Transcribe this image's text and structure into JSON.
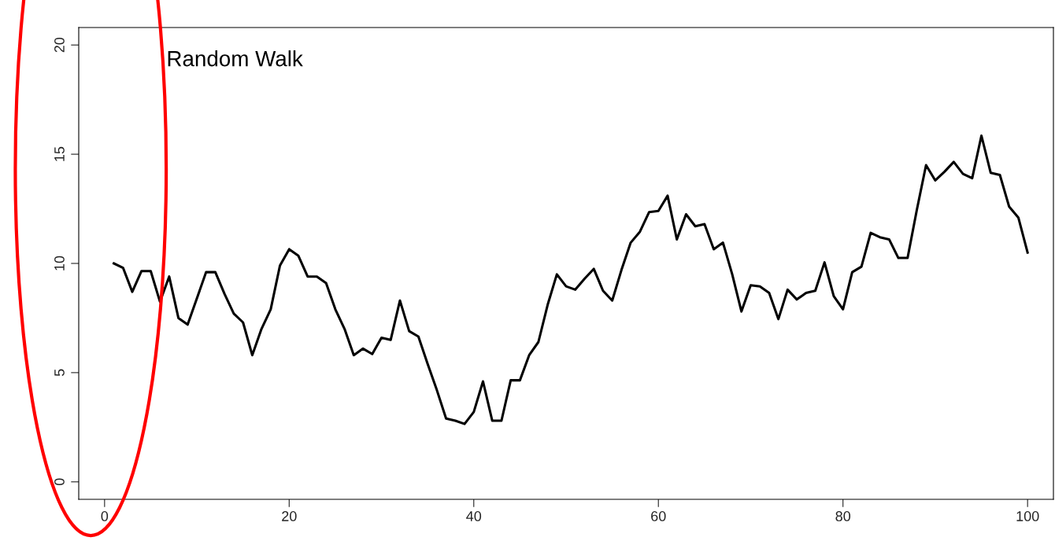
{
  "chart_data": {
    "type": "line",
    "title": "Random Walk",
    "x": [
      1,
      2,
      3,
      4,
      5,
      6,
      7,
      8,
      9,
      10,
      11,
      12,
      13,
      14,
      15,
      16,
      17,
      18,
      19,
      20,
      21,
      22,
      23,
      24,
      25,
      26,
      27,
      28,
      29,
      30,
      31,
      32,
      33,
      34,
      35,
      36,
      37,
      38,
      39,
      40,
      41,
      42,
      43,
      44,
      45,
      46,
      47,
      48,
      49,
      50,
      51,
      52,
      53,
      54,
      55,
      56,
      57,
      58,
      59,
      60,
      61,
      62,
      63,
      64,
      65,
      66,
      67,
      68,
      69,
      70,
      71,
      72,
      73,
      74,
      75,
      76,
      77,
      78,
      79,
      80,
      81,
      82,
      83,
      84,
      85,
      86,
      87,
      88,
      89,
      90,
      91,
      92,
      93,
      94,
      95,
      96,
      97,
      98,
      99,
      100
    ],
    "series": [
      {
        "color": "#000000",
        "values": [
          10.0,
          9.8,
          8.7,
          9.65,
          9.65,
          8.25,
          9.4,
          7.5,
          7.2,
          8.4,
          9.6,
          9.6,
          8.6,
          7.7,
          7.3,
          5.8,
          7.0,
          7.9,
          9.9,
          10.65,
          10.35,
          9.4,
          9.4,
          9.1,
          7.9,
          7.0,
          5.8,
          6.1,
          5.85,
          6.6,
          6.5,
          8.3,
          6.9,
          6.65,
          5.4,
          4.2,
          2.9,
          2.8,
          2.65,
          3.2,
          4.6,
          2.8,
          2.8,
          4.65,
          4.65,
          5.8,
          6.4,
          8.1,
          9.5,
          8.95,
          8.8,
          9.3,
          9.75,
          8.75,
          8.3,
          9.7,
          10.95,
          11.45,
          12.35,
          12.4,
          13.1,
          11.1,
          12.25,
          11.7,
          11.8,
          10.65,
          10.95,
          9.5,
          7.8,
          9.0,
          8.95,
          8.65,
          7.45,
          8.8,
          8.35,
          8.65,
          8.75,
          10.05,
          8.5,
          7.9,
          9.6,
          9.85,
          11.4,
          11.2,
          11.1,
          10.25,
          10.25,
          12.45,
          14.5,
          13.8,
          14.2,
          14.65,
          14.1,
          13.9,
          15.85,
          14.15,
          14.05,
          12.6,
          12.1,
          10.5
        ]
      }
    ],
    "xlim": [
      -2.8,
      102.8
    ],
    "ylim": [
      -0.8,
      20.8
    ],
    "xticks": [
      0,
      20,
      40,
      60,
      80,
      100
    ],
    "yticks": [
      0,
      5,
      10,
      15,
      20
    ],
    "grid": false,
    "marker": "none",
    "line_style": "solid"
  }
}
